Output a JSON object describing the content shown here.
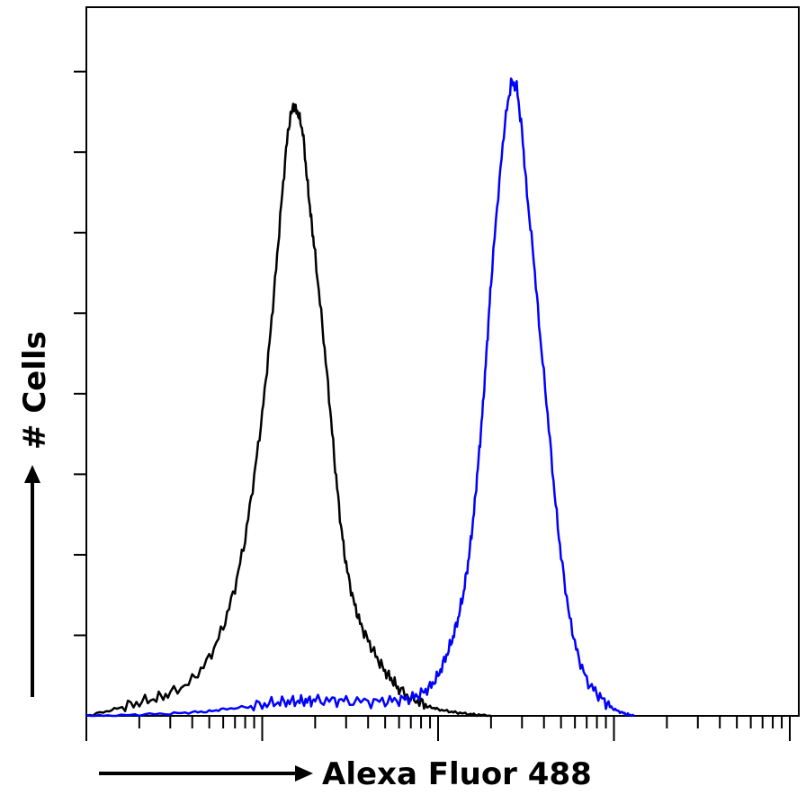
{
  "chart_data": {
    "type": "line",
    "title": "",
    "xlabel": "Alexa Fluor 488",
    "ylabel": "# Cells",
    "x_scale": "log",
    "xlim": [
      1,
      10000
    ],
    "ylim": [
      0,
      160
    ],
    "grid": false,
    "legend": "none",
    "series": [
      {
        "color": "#000000",
        "x": [
          1,
          1.3,
          1.6,
          2,
          2.5,
          3,
          4,
          5,
          6,
          7,
          8,
          9,
          10,
          11,
          12,
          13,
          14,
          15,
          16,
          17,
          18,
          19,
          20,
          22,
          24,
          26,
          28,
          30,
          33,
          36,
          40,
          45,
          50,
          55,
          60,
          70,
          80,
          90,
          100,
          115,
          130,
          150,
          170,
          200
        ],
        "y": [
          0,
          1,
          2,
          3,
          4,
          5,
          8,
          13,
          20,
          29,
          40,
          54,
          68,
          84,
          101,
          118,
          132,
          138,
          136,
          132,
          121,
          112,
          104,
          88,
          72,
          56,
          43,
          34,
          26,
          21,
          17,
          13,
          10,
          8,
          6,
          4,
          3,
          2,
          1.5,
          1,
          0.7,
          0.4,
          0.2,
          0
        ]
      },
      {
        "color": "#0000ff",
        "x": [
          1,
          1.4,
          2,
          3,
          4,
          5,
          6,
          8,
          10,
          12,
          14,
          16,
          18,
          20,
          25,
          30,
          40,
          50,
          60,
          70,
          80,
          90,
          100,
          110,
          120,
          130,
          140,
          150,
          160,
          170,
          180,
          190,
          200,
          220,
          240,
          260,
          280,
          300,
          320,
          350,
          380,
          420,
          460,
          500,
          560,
          620,
          700,
          800,
          900,
          1000,
          1100,
          1200,
          1300
        ],
        "y": [
          0,
          0,
          0.3,
          0.5,
          0.8,
          1,
          1.5,
          2,
          2.5,
          3,
          3.2,
          3.3,
          3.4,
          3.5,
          3.5,
          3.4,
          3.2,
          3.3,
          3.6,
          4,
          5,
          6.5,
          9,
          13,
          17,
          22,
          28,
          36,
          46,
          58,
          70,
          84,
          98,
          118,
          134,
          143,
          142,
          132,
          118,
          103,
          86,
          68,
          50,
          36,
          22,
          14,
          8,
          5,
          3,
          1.5,
          0.8,
          0.3,
          0
        ]
      }
    ]
  }
}
